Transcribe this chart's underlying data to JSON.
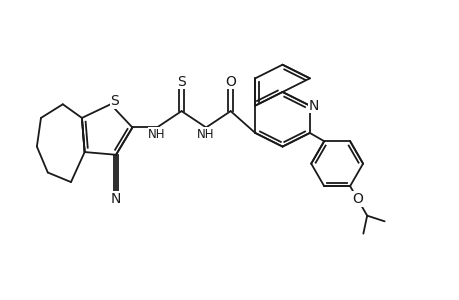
{
  "bg": "#ffffff",
  "lc": "#1a1a1a",
  "lw": 1.3,
  "fs": 8.5,
  "xlim": [
    -0.5,
    6.2
  ],
  "ylim": [
    -1.1,
    3.2
  ],
  "figsize": [
    4.6,
    3.0
  ],
  "dpi": 100
}
